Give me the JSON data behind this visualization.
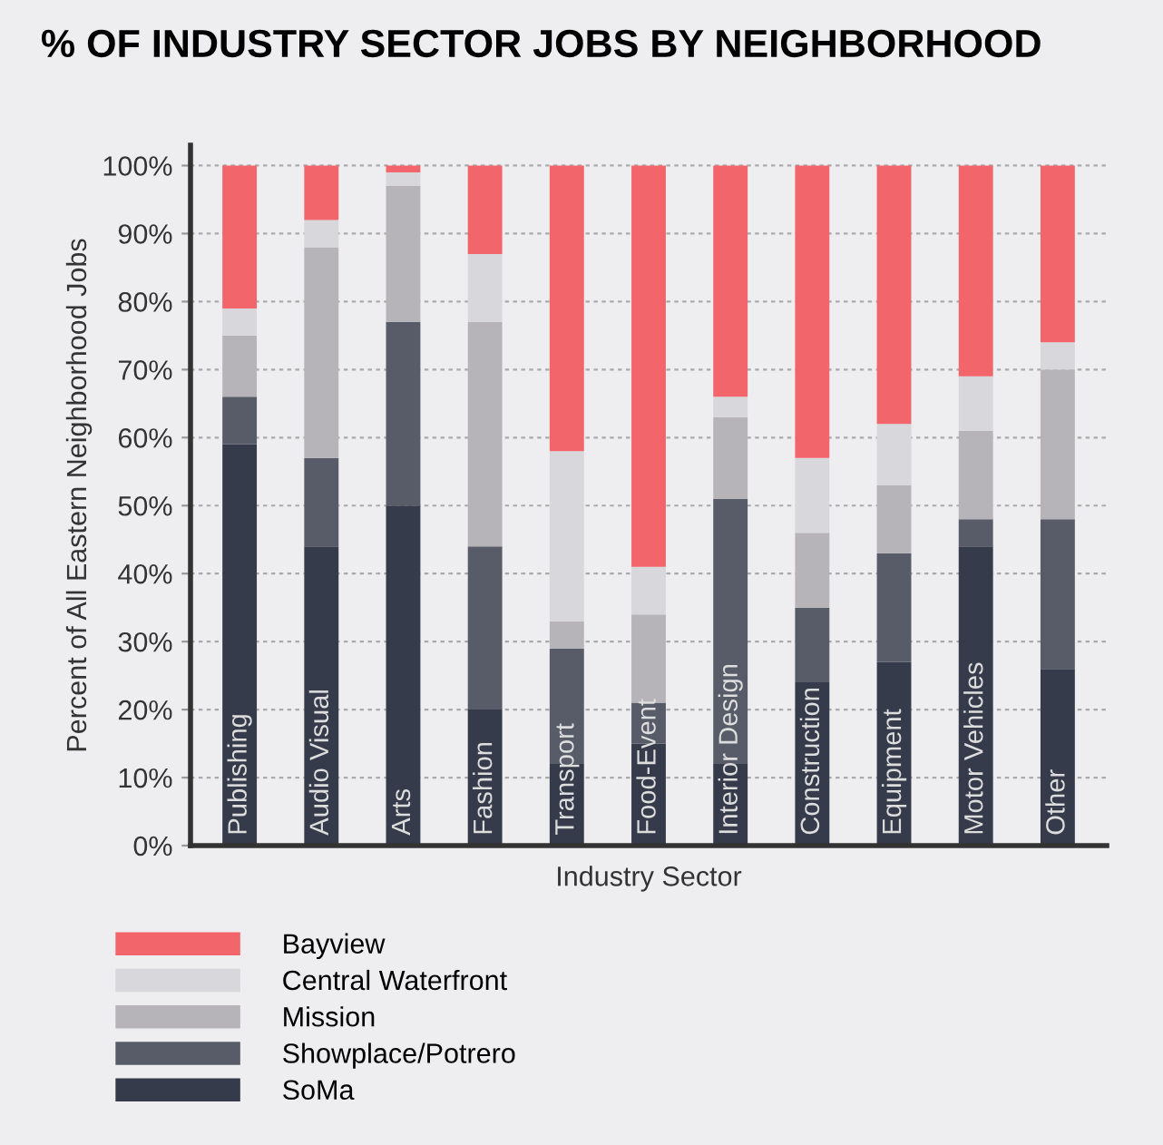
{
  "chart_data": {
    "type": "bar",
    "stacked": true,
    "title": "% OF INDUSTRY SECTOR JOBS BY NEIGHBORHOOD",
    "xlabel": "Industry Sector",
    "ylabel": "Percent of All Eastern Neighborhood Jobs",
    "categories": [
      "Publishing",
      "Audio Visual",
      "Arts",
      "Fashion",
      "Transport",
      "Food-Event",
      "Interior Design",
      "Construction",
      "Equipment",
      "Motor Vehicles",
      "Other"
    ],
    "series": [
      {
        "name": "SoMa",
        "color": "#353b4a",
        "values": [
          59,
          44,
          50,
          20,
          12,
          15,
          12,
          24,
          27,
          44,
          26
        ]
      },
      {
        "name": "Showplace/Potrero",
        "color": "#585b68",
        "values": [
          7,
          13,
          27,
          24,
          17,
          6,
          39,
          11,
          16,
          4,
          22
        ]
      },
      {
        "name": "Mission",
        "color": "#b6b4b9",
        "values": [
          9,
          31,
          20,
          33,
          4,
          13,
          12,
          11,
          10,
          13,
          22
        ]
      },
      {
        "name": "Central Waterfront",
        "color": "#d8d7db",
        "values": [
          4,
          4,
          2,
          10,
          25,
          7,
          3,
          11,
          9,
          8,
          4
        ]
      },
      {
        "name": "Bayview",
        "color": "#f2666b",
        "values": [
          21,
          8,
          1,
          13,
          42,
          59,
          34,
          43,
          38,
          31,
          26
        ]
      }
    ],
    "ylim": [
      0,
      103
    ],
    "yticks": [
      {
        "value": 0,
        "label": "0%"
      },
      {
        "value": 10,
        "label": "10%"
      },
      {
        "value": 20,
        "label": "20%"
      },
      {
        "value": 30,
        "label": "30%"
      },
      {
        "value": 40,
        "label": "40%"
      },
      {
        "value": 50,
        "label": "50%"
      },
      {
        "value": 60,
        "label": "60%"
      },
      {
        "value": 70,
        "label": "70%"
      },
      {
        "value": 80,
        "label": "80%"
      },
      {
        "value": 90,
        "label": "90%"
      },
      {
        "value": 100,
        "label": "100%"
      }
    ],
    "grid": "y",
    "legend": "bottom",
    "tick_labels": "y"
  }
}
